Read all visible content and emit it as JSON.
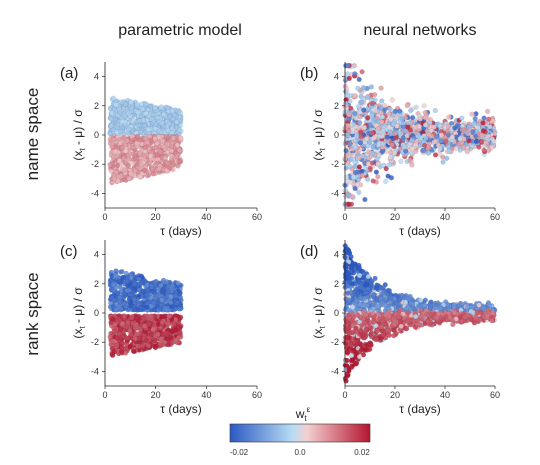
{
  "column_titles": [
    "parametric model",
    "neural networks"
  ],
  "row_titles": [
    "name space",
    "rank space"
  ],
  "colorbar": {
    "label": "w",
    "label_subscript": "t",
    "label_superscript": "ε",
    "ticks": [
      "-0.02",
      "0.0",
      "0.02"
    ],
    "range": [
      -0.02,
      0.02
    ],
    "colors": [
      "#2b59c3",
      "#b8ddf4",
      "#f4cfcf",
      "#b3162f"
    ]
  },
  "chart_data": [
    {
      "type": "scatter",
      "panel": "(a)",
      "xlabel": "τ (days)",
      "ylabel": "(x_t - μ) / σ",
      "xlim": [
        0,
        60
      ],
      "ylim": [
        -5,
        5
      ],
      "xticks": [
        "0",
        "20",
        "40",
        "60"
      ],
      "yticks": [
        "4",
        "2",
        "0",
        "-2",
        "-4"
      ],
      "x_data_range": [
        2,
        30
      ],
      "series": [
        {
          "values_range": [
            0.1,
            2.6
          ],
          "weight_range": [
            -0.006,
            -0.002
          ]
        },
        {
          "values_range": [
            -3.4,
            -0.1
          ],
          "weight_range": [
            0.003,
            0.01
          ]
        }
      ]
    },
    {
      "type": "scatter",
      "panel": "(b)",
      "xlabel": "τ (days)",
      "ylabel": "(x_t - μ) / σ",
      "xlim": [
        0,
        60
      ],
      "ylim": [
        -5,
        5
      ],
      "xticks": [
        "0",
        "20",
        "40",
        "60"
      ],
      "yticks": [
        "4",
        "2",
        "0",
        "-2",
        "-4"
      ],
      "x_data_range": [
        0,
        60
      ],
      "series": [
        {
          "values_range": [
            -4.8,
            4.8
          ],
          "weight_range": [
            -0.02,
            0.02
          ]
        }
      ]
    },
    {
      "type": "scatter",
      "panel": "(c)",
      "xlabel": "τ (days)",
      "ylabel": "(x_t - μ) / σ",
      "xlim": [
        0,
        60
      ],
      "ylim": [
        -5,
        5
      ],
      "xticks": [
        "0",
        "20",
        "40",
        "60"
      ],
      "yticks": [
        "4",
        "2",
        "0",
        "-2",
        "-4"
      ],
      "x_data_range": [
        2,
        30
      ],
      "series": [
        {
          "values_range": [
            0.2,
            3.0
          ],
          "weight_range": [
            -0.02,
            -0.012
          ]
        },
        {
          "values_range": [
            -3.0,
            -0.2
          ],
          "weight_range": [
            0.012,
            0.02
          ]
        }
      ]
    },
    {
      "type": "scatter",
      "panel": "(d)",
      "xlabel": "τ (days)",
      "ylabel": "(x_t - μ) / σ",
      "xlim": [
        0,
        60
      ],
      "ylim": [
        -5,
        5
      ],
      "xticks": [
        "0",
        "20",
        "40",
        "60"
      ],
      "yticks": [
        "4",
        "2",
        "0",
        "-2",
        "-4"
      ],
      "x_data_range": [
        0,
        60
      ],
      "series": [
        {
          "values_range": [
            0,
            5
          ],
          "weight_range": [
            -0.02,
            -0.005
          ]
        },
        {
          "values_range": [
            -5,
            0
          ],
          "weight_range": [
            0.005,
            0.02
          ]
        }
      ]
    }
  ]
}
